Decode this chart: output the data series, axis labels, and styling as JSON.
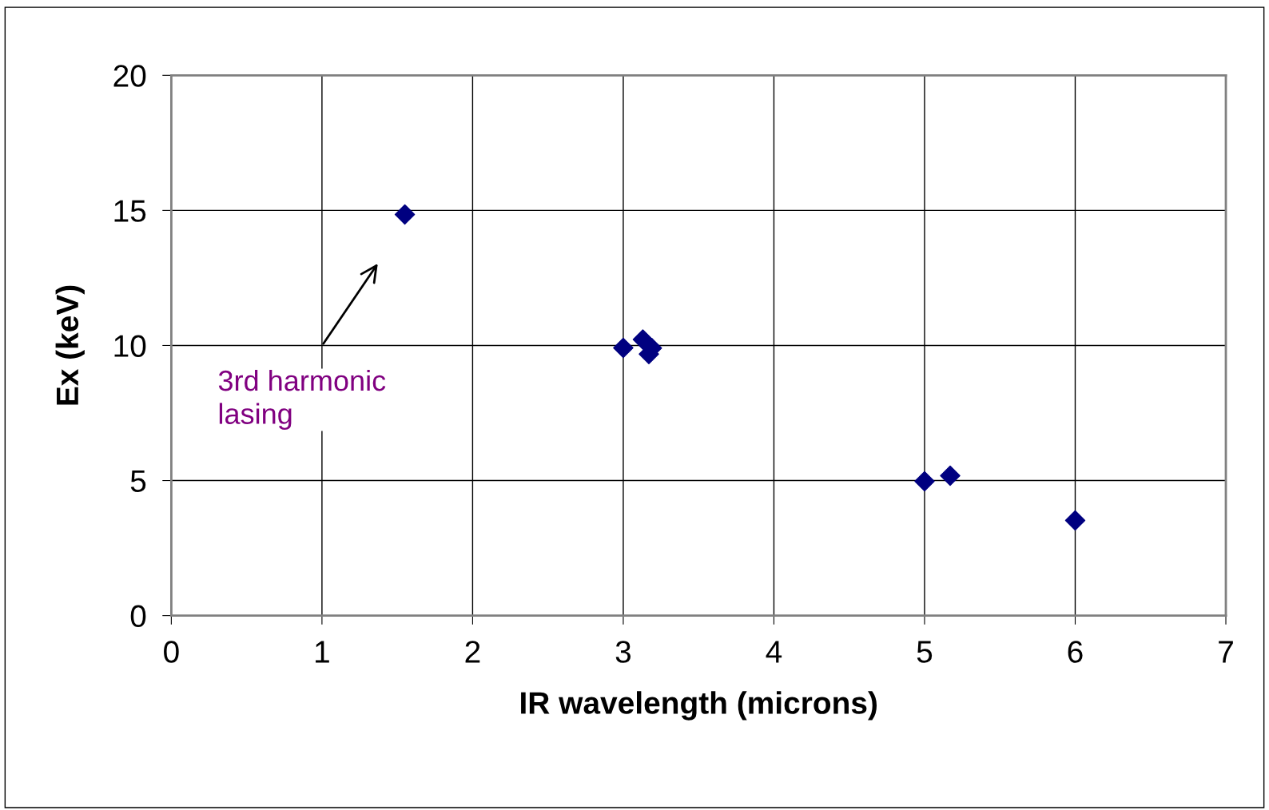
{
  "chart_data": {
    "type": "scatter",
    "xlabel": "IR wavelength (microns)",
    "ylabel": "Ex (keV)",
    "x": [
      1.55,
      3.0,
      3.13,
      3.19,
      3.17,
      5.0,
      5.17,
      6.0
    ],
    "series": [
      {
        "color": "#000080",
        "values": [
          14.85,
          9.91,
          10.22,
          9.9,
          9.68,
          4.97,
          5.18,
          3.52
        ]
      }
    ],
    "marker": "diamond",
    "grid": true,
    "xlim": [
      0,
      7
    ],
    "xticks": [
      0,
      1,
      2,
      3,
      4,
      5,
      6,
      7
    ],
    "ylim": [
      0,
      20
    ],
    "yticks": [
      0,
      5,
      10,
      15,
      20
    ],
    "annotations": [
      "3rd harmonic\nlasing"
    ]
  }
}
